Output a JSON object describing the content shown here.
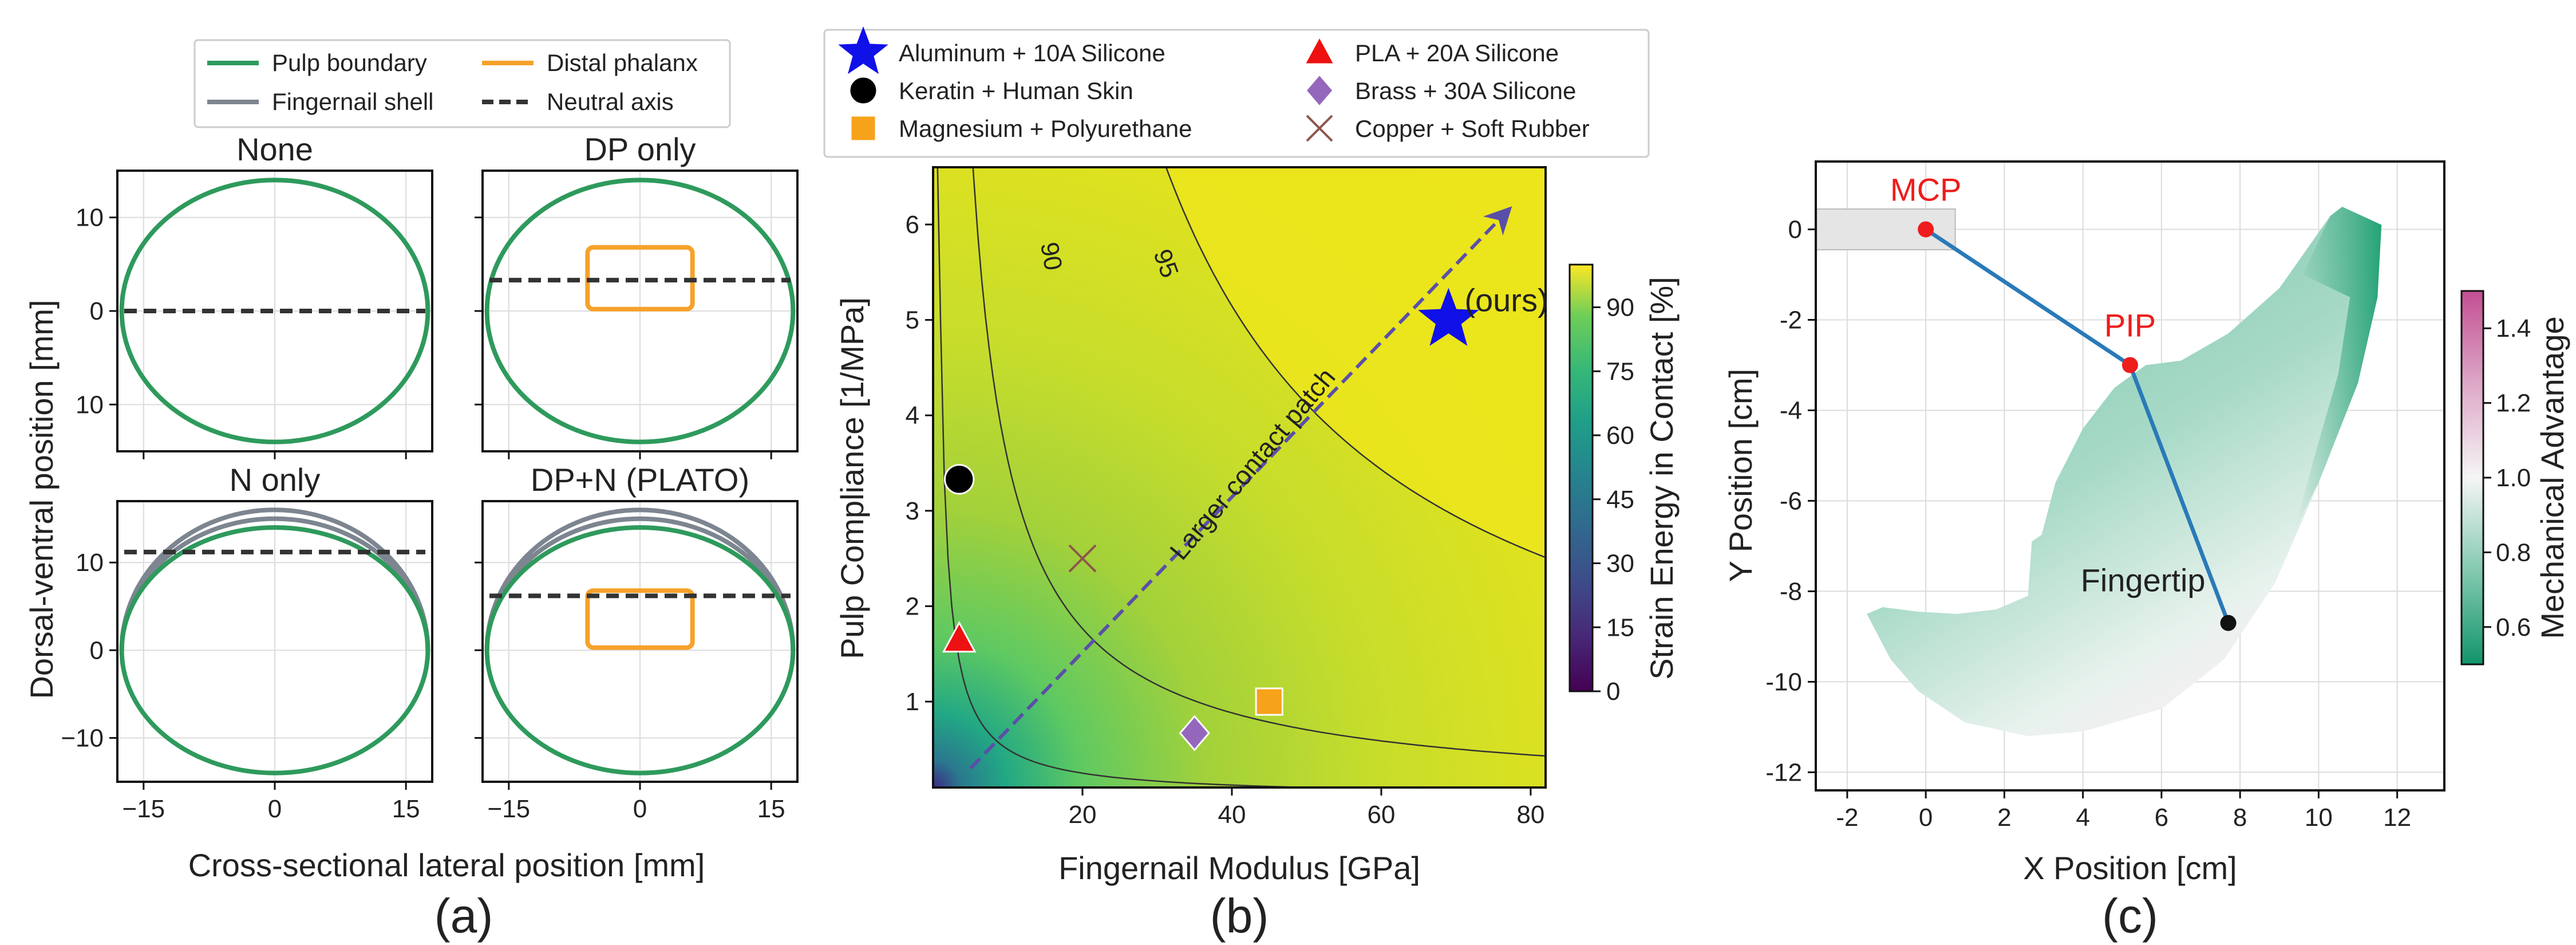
{
  "colors": {
    "pulp": "#2e9a5c",
    "shell": "#7d8590",
    "distal": "#f6a22b",
    "neutral": "#333333",
    "arm": "#2a7ab8",
    "joint": "#ee1c1c",
    "tip": "#111111"
  },
  "panels": {
    "a": "(a)",
    "b": "(b)",
    "c": "(c)"
  },
  "chart_data": [
    {
      "id": "a",
      "type": "line",
      "legend": {
        "placement": "top",
        "entries": [
          "Pulp boundary",
          "Distal phalanx",
          "Fingernail shell",
          "Neutral axis"
        ]
      },
      "xlabel": "Cross-sectional lateral position [mm]",
      "ylabel": "Dorsal-ventral position [mm]",
      "xlim": [
        -18,
        18
      ],
      "x_ticks": [
        "−15",
        "0",
        "15"
      ],
      "grid": true,
      "subplots": [
        {
          "title": "None",
          "ylim": [
            -15,
            15
          ],
          "y_ticks": [
            "10",
            "0",
            "10"
          ],
          "pulp_ellipse": {
            "a": 17.5,
            "b": 14
          },
          "neutral_axis_y": 0
        },
        {
          "title": "DP only",
          "ylim": [
            -15,
            15
          ],
          "pulp_ellipse": {
            "a": 17.5,
            "b": 14
          },
          "distal_rect": {
            "x": [
              -6,
              6
            ],
            "y": [
              0.2,
              6.8
            ]
          },
          "neutral_axis_y": 3.3
        },
        {
          "title": "N only",
          "ylim": [
            -15,
            17
          ],
          "y_ticks": [
            "10",
            "0",
            "−10"
          ],
          "pulp_ellipse": {
            "a": 17.5,
            "b": 14
          },
          "shell_arcs": [
            {
              "a": 17.5,
              "b": 15
            },
            {
              "a": 17.5,
              "b": 16
            }
          ],
          "neutral_axis_y": 11.2
        },
        {
          "title": "DP+N (PLATO)",
          "ylim": [
            -15,
            17
          ],
          "pulp_ellipse": {
            "a": 17.5,
            "b": 14
          },
          "shell_arcs": [
            {
              "a": 17.5,
              "b": 15
            },
            {
              "a": 17.5,
              "b": 16
            }
          ],
          "distal_rect": {
            "x": [
              -6,
              6
            ],
            "y": [
              0.3,
              6.8
            ]
          },
          "neutral_axis_y": 6.2
        }
      ]
    },
    {
      "id": "b",
      "type": "heatmap",
      "xlabel": "Fingernail Modulus [GPa]",
      "ylabel": "Pulp Compliance [1/MPa]",
      "xlim": [
        0,
        82
      ],
      "ylim": [
        0.1,
        6.6
      ],
      "x_ticks": [
        "20",
        "40",
        "60",
        "80"
      ],
      "y_ticks": [
        "1",
        "2",
        "3",
        "4",
        "5",
        "6"
      ],
      "colorbar": {
        "label": "Strain Energy in Contact [%]",
        "ticks": [
          "0",
          "15",
          "30",
          "45",
          "60",
          "75",
          "90"
        ],
        "range": [
          0,
          100
        ]
      },
      "contour_labels": [
        "90",
        "95"
      ],
      "arrow_label": "Larger contact patch",
      "arrow": {
        "from": [
          5,
          0.3
        ],
        "to": [
          77,
          6.15
        ]
      },
      "legend_placement": "top",
      "materials": [
        {
          "name": "Aluminum + 10A Silicone",
          "x": 69,
          "y": 5.0,
          "marker": "star",
          "color": "#1010e8",
          "annotation": "(ours)"
        },
        {
          "name": "Keratin + Human Skin",
          "x": 3.5,
          "y": 3.33,
          "marker": "circle",
          "color": "#000000"
        },
        {
          "name": "Magnesium + Polyurethane",
          "x": 45,
          "y": 1.0,
          "marker": "square",
          "color": "#f7a21b"
        },
        {
          "name": "PLA + 20A Silicone",
          "x": 3.5,
          "y": 1.65,
          "marker": "triangle",
          "color": "#ee1111"
        },
        {
          "name": "Brass + 30A Silicone",
          "x": 35,
          "y": 0.67,
          "marker": "diamond",
          "color": "#9467bd"
        },
        {
          "name": "Copper + Soft Rubber",
          "x": 20,
          "y": 2.5,
          "marker": "x",
          "color": "#8c564b"
        }
      ]
    },
    {
      "id": "c",
      "type": "scatter",
      "xlabel": "X Position [cm]",
      "ylabel": "Y Position [cm]",
      "xlim": [
        -2.8,
        13.2
      ],
      "ylim": [
        -12.4,
        1.5
      ],
      "x_ticks": [
        "-2",
        "0",
        "2",
        "4",
        "6",
        "8",
        "10",
        "12"
      ],
      "y_ticks": [
        "0",
        "-2",
        "-4",
        "-6",
        "-8",
        "-10",
        "-12"
      ],
      "grid": true,
      "colorbar": {
        "label": "Mechanical Advantage",
        "ticks": [
          "0.6",
          "0.8",
          "1.0",
          "1.2",
          "1.4"
        ],
        "range": [
          0.5,
          1.5
        ]
      },
      "joints": [
        {
          "label": "MCP",
          "x": 0,
          "y": 0
        },
        {
          "label": "PIP",
          "x": 5.2,
          "y": -3.0
        },
        {
          "label": "Fingertip",
          "x": 7.7,
          "y": -8.7
        }
      ],
      "mount_box": {
        "x": [
          -2.8,
          0.75
        ],
        "y": [
          -0.45,
          0.45
        ]
      },
      "workspace_boundary": [
        [
          -1.5,
          -8.5
        ],
        [
          -1.1,
          -8.35
        ],
        [
          -0.2,
          -8.45
        ],
        [
          0.8,
          -8.5
        ],
        [
          1.8,
          -8.4
        ],
        [
          2.6,
          -8.1
        ],
        [
          2.7,
          -6.9
        ],
        [
          2.95,
          -6.75
        ],
        [
          3.3,
          -5.6
        ],
        [
          4.0,
          -4.4
        ],
        [
          4.8,
          -3.5
        ],
        [
          5.6,
          -3.0
        ],
        [
          6.5,
          -2.9
        ],
        [
          7.7,
          -2.3
        ],
        [
          9.0,
          -1.3
        ],
        [
          10.3,
          0.3
        ],
        [
          10.6,
          0.5
        ],
        [
          11.1,
          0.3
        ],
        [
          11.6,
          0.1
        ],
        [
          11.5,
          -1.5
        ],
        [
          11.0,
          -3.4
        ],
        [
          10.0,
          -5.6
        ],
        [
          8.9,
          -7.8
        ],
        [
          7.6,
          -9.5
        ],
        [
          6.0,
          -10.6
        ],
        [
          4.0,
          -11.1
        ],
        [
          2.6,
          -11.2
        ],
        [
          1.0,
          -10.9
        ],
        [
          -0.2,
          -10.2
        ],
        [
          -0.9,
          -9.5
        ]
      ]
    }
  ]
}
